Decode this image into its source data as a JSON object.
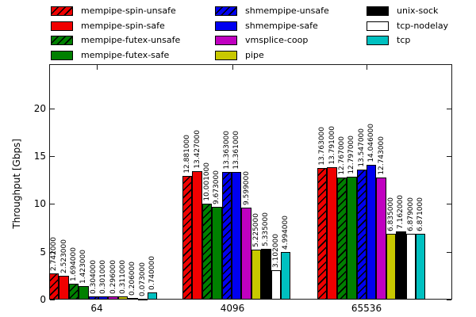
{
  "chart_data": {
    "type": "bar",
    "title": "",
    "xlabel": "",
    "ylabel": "Throughput [Gbps]",
    "categories": [
      "64",
      "4096",
      "65536"
    ],
    "ylim": [
      0,
      24.6
    ],
    "yticks": [
      0,
      5,
      10,
      15,
      20
    ],
    "grid": false,
    "legend_position": "top",
    "value_label_decimals": 6,
    "colors": {
      "red": "#f00000",
      "green": "#008000",
      "blue": "#0000f0",
      "magenta": "#c000c0",
      "olive": "#c8c800",
      "black": "#000000",
      "white": "#ffffff",
      "cyan": "#00c0c0",
      "axis": "#1a1a1a"
    },
    "series": [
      {
        "name": "mempipe-spin-unsafe",
        "color": "#f00000",
        "hatched": true,
        "values": [
          2.742,
          12.881,
          13.763
        ]
      },
      {
        "name": "mempipe-spin-safe",
        "color": "#f00000",
        "hatched": false,
        "values": [
          2.523,
          13.427,
          13.791
        ]
      },
      {
        "name": "mempipe-futex-unsafe",
        "color": "#008000",
        "hatched": true,
        "values": [
          1.694,
          10.001,
          12.767
        ]
      },
      {
        "name": "mempipe-futex-safe",
        "color": "#008000",
        "hatched": false,
        "values": [
          1.423,
          9.673,
          12.797
        ]
      },
      {
        "name": "shmempipe-unsafe",
        "color": "#0000f0",
        "hatched": true,
        "values": [
          0.304,
          13.363,
          13.547
        ]
      },
      {
        "name": "shmempipe-safe",
        "color": "#0000f0",
        "hatched": false,
        "values": [
          0.301,
          13.361,
          14.046
        ]
      },
      {
        "name": "vmsplice-coop",
        "color": "#c000c0",
        "hatched": false,
        "values": [
          0.296,
          9.599,
          12.743
        ]
      },
      {
        "name": "pipe",
        "color": "#c8c800",
        "hatched": false,
        "values": [
          0.311,
          5.225,
          6.835
        ]
      },
      {
        "name": "unix-sock",
        "color": "#000000",
        "hatched": false,
        "values": [
          0.206,
          5.335,
          7.162
        ]
      },
      {
        "name": "tcp-nodelay",
        "color": "#ffffff",
        "hatched": false,
        "values": [
          0.073,
          3.102,
          6.879
        ]
      },
      {
        "name": "tcp",
        "color": "#00c0c0",
        "hatched": false,
        "values": [
          0.74,
          4.994,
          6.871
        ]
      }
    ]
  }
}
